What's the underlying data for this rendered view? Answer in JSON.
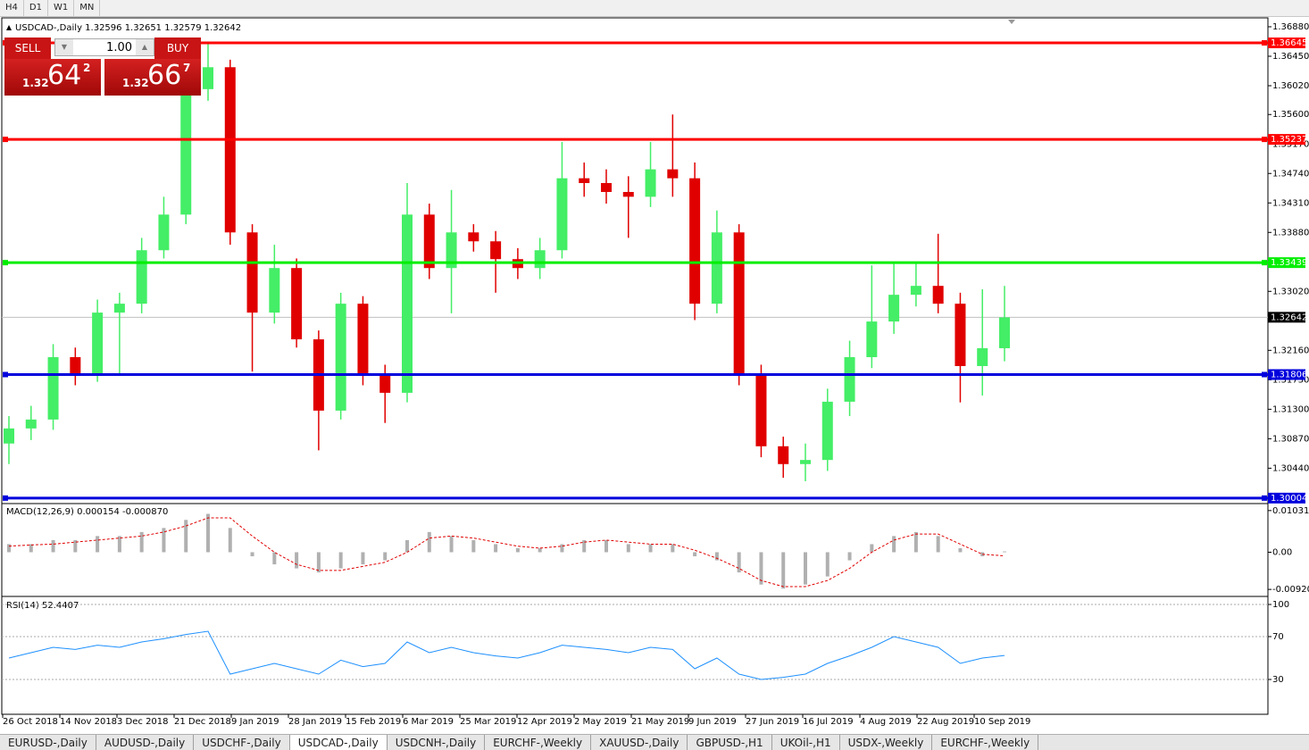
{
  "toolbar": {
    "timeframes": [
      "H4",
      "D1",
      "W1",
      "MN"
    ]
  },
  "trade_panel": {
    "sell": "SELL",
    "buy": "BUY",
    "lots": "1.00",
    "bid": {
      "prefix": "1.32",
      "big": "64",
      "small": "2"
    },
    "ask": {
      "prefix": "1.32",
      "big": "66",
      "small": "7"
    }
  },
  "chart_data": [
    {
      "type": "candlestick",
      "title": "USDCAD-,Daily  1.32596 1.32651 1.32579 1.32642",
      "up_color": "#44ee66",
      "down_color": "#e00000",
      "open": [
        1.308,
        1.3102,
        1.3115,
        1.3206,
        1.318,
        1.3271,
        1.3284,
        1.3362,
        1.3414,
        1.3597,
        1.3629,
        1.3388,
        1.3271,
        1.3336,
        1.3232,
        1.3128,
        1.3284,
        1.318,
        1.3154,
        1.3414,
        1.3336,
        1.3388,
        1.3375,
        1.3349,
        1.3336,
        1.3362,
        1.3467,
        1.346,
        1.3447,
        1.344,
        1.348,
        1.3467,
        1.3284,
        1.3388,
        1.318,
        1.3076,
        1.305,
        1.3056,
        1.3141,
        1.3206,
        1.3258,
        1.3297,
        1.331,
        1.3284,
        1.3193,
        1.3219
      ],
      "high": [
        1.312,
        1.3135,
        1.3225,
        1.322,
        1.329,
        1.33,
        1.338,
        1.344,
        1.362,
        1.3665,
        1.364,
        1.34,
        1.337,
        1.335,
        1.3245,
        1.33,
        1.3295,
        1.3195,
        1.346,
        1.343,
        1.345,
        1.34,
        1.339,
        1.3365,
        1.338,
        1.352,
        1.349,
        1.348,
        1.347,
        1.352,
        1.356,
        1.349,
        1.342,
        1.34,
        1.3195,
        1.309,
        1.308,
        1.316,
        1.323,
        1.334,
        1.3345,
        1.3345,
        1.3386,
        1.33,
        1.3305,
        1.331
      ],
      "low": [
        1.305,
        1.3085,
        1.31,
        1.3165,
        1.317,
        1.318,
        1.327,
        1.335,
        1.34,
        1.358,
        1.337,
        1.3185,
        1.3255,
        1.322,
        1.307,
        1.3115,
        1.3165,
        1.311,
        1.314,
        1.332,
        1.327,
        1.336,
        1.33,
        1.332,
        1.332,
        1.335,
        1.344,
        1.343,
        1.338,
        1.3425,
        1.344,
        1.326,
        1.327,
        1.3165,
        1.306,
        1.303,
        1.3025,
        1.304,
        1.312,
        1.319,
        1.324,
        1.328,
        1.327,
        1.314,
        1.315,
        1.32
      ],
      "close": [
        1.3102,
        1.3115,
        1.3206,
        1.318,
        1.3271,
        1.3284,
        1.3362,
        1.3414,
        1.3597,
        1.3629,
        1.3388,
        1.3271,
        1.3336,
        1.3232,
        1.3128,
        1.3284,
        1.318,
        1.3154,
        1.3414,
        1.3336,
        1.3388,
        1.3375,
        1.3349,
        1.3336,
        1.3362,
        1.3467,
        1.346,
        1.3447,
        1.344,
        1.348,
        1.3467,
        1.3284,
        1.3388,
        1.318,
        1.3076,
        1.305,
        1.3056,
        1.3141,
        1.3206,
        1.3258,
        1.3297,
        1.331,
        1.3284,
        1.3193,
        1.3219,
        1.3264
      ],
      "ylim": [
        1.2995,
        1.3701
      ],
      "yticks": [
        {
          "value": 1.3688,
          "label": "1.36880"
        },
        {
          "value": 1.3645,
          "label": "1.36450"
        },
        {
          "value": 1.3602,
          "label": "1.36020"
        },
        {
          "value": 1.356,
          "label": "1.35600"
        },
        {
          "value": 1.3517,
          "label": "1.35170"
        },
        {
          "value": 1.3474,
          "label": "1.34740"
        },
        {
          "value": 1.3431,
          "label": "1.34310"
        },
        {
          "value": 1.3388,
          "label": "1.33880"
        },
        {
          "value": 1.3302,
          "label": "1.33020"
        },
        {
          "value": 1.3216,
          "label": "1.32160"
        },
        {
          "value": 1.3173,
          "label": "1.31730"
        },
        {
          "value": 1.313,
          "label": "1.31300"
        },
        {
          "value": 1.3087,
          "label": "1.30870"
        },
        {
          "value": 1.3044,
          "label": "1.30440"
        }
      ],
      "x_labels": [
        "26 Oct 2018",
        "14 Nov 2018",
        "3 Dec 2018",
        "21 Dec 2018",
        "9 Jan 2019",
        "28 Jan 2019",
        "15 Feb 2019",
        "6 Mar 2019",
        "25 Mar 2019",
        "12 Apr 2019",
        "2 May 2019",
        "21 May 2019",
        "9 Jun 2019",
        "27 Jun 2019",
        "16 Jul 2019",
        "4 Aug 2019",
        "22 Aug 2019",
        "10 Sep 2019"
      ],
      "levels": [
        {
          "value": 1.36645,
          "color": "#ff0000"
        },
        {
          "value": 1.35237,
          "color": "#ff0000"
        },
        {
          "value": 1.33439,
          "color": "#00ee00"
        },
        {
          "value": 1.31806,
          "color": "#0000dd"
        },
        {
          "value": 1.30004,
          "color": "#0000dd"
        }
      ],
      "current_price": 1.32642
    },
    {
      "type": "macd",
      "title": "MACD(12,26,9) 0.000154 -0.000870",
      "histogram": [
        0.002,
        0.002,
        0.003,
        0.003,
        0.004,
        0.004,
        0.005,
        0.006,
        0.008,
        0.0095,
        0.006,
        -0.001,
        -0.003,
        -0.004,
        -0.005,
        -0.004,
        -0.003,
        -0.002,
        0.003,
        0.005,
        0.004,
        0.003,
        0.002,
        0.001,
        0.001,
        0.002,
        0.003,
        0.003,
        0.002,
        0.002,
        0.002,
        -0.001,
        -0.002,
        -0.005,
        -0.008,
        -0.009,
        -0.008,
        -0.006,
        -0.002,
        0.002,
        0.004,
        0.005,
        0.004,
        0.001,
        -0.001,
        0.0002
      ],
      "signal": [
        0.0015,
        0.0018,
        0.002,
        0.0025,
        0.003,
        0.0035,
        0.004,
        0.005,
        0.0065,
        0.0085,
        0.0085,
        0.004,
        0.0,
        -0.003,
        -0.0045,
        -0.0045,
        -0.0035,
        -0.0025,
        0.0,
        0.0035,
        0.004,
        0.0035,
        0.0025,
        0.0015,
        0.001,
        0.0015,
        0.0025,
        0.003,
        0.0025,
        0.002,
        0.002,
        0.0005,
        -0.0015,
        -0.004,
        -0.007,
        -0.0085,
        -0.0085,
        -0.007,
        -0.004,
        0.0,
        0.003,
        0.0045,
        0.0045,
        0.002,
        -0.0005,
        -0.0009
      ],
      "hist_color": "#b0b0b0",
      "signal_color": "#e00000",
      "ylim": [
        -0.0105,
        0.0116
      ],
      "yticks": [
        0.010311,
        {
          "value": 0,
          "label": "0.00"
        },
        -0.009203
      ]
    },
    {
      "type": "line",
      "title": "RSI(14) 52.4407",
      "values": [
        50,
        55,
        60,
        58,
        62,
        60,
        65,
        68,
        72,
        75,
        35,
        40,
        45,
        40,
        35,
        48,
        42,
        45,
        65,
        55,
        60,
        55,
        52,
        50,
        55,
        62,
        60,
        58,
        55,
        60,
        58,
        40,
        50,
        35,
        30,
        32,
        35,
        45,
        52,
        60,
        70,
        65,
        60,
        45,
        50,
        52.44
      ],
      "color": "#1e90ff",
      "ylim": [
        0,
        100
      ],
      "yticks": [
        100,
        70,
        30
      ]
    }
  ],
  "tabs": {
    "items": [
      "EURUSD-,Daily",
      "AUDUSD-,Daily",
      "USDCHF-,Daily",
      "USDCAD-,Daily",
      "USDCNH-,Daily",
      "EURCHF-,Weekly",
      "XAUUSD-,Daily",
      "GBPUSD-,H1",
      "UKOil-,H1",
      "USDX-,Weekly",
      "EURCHF-,Weekly"
    ],
    "active": 3
  }
}
